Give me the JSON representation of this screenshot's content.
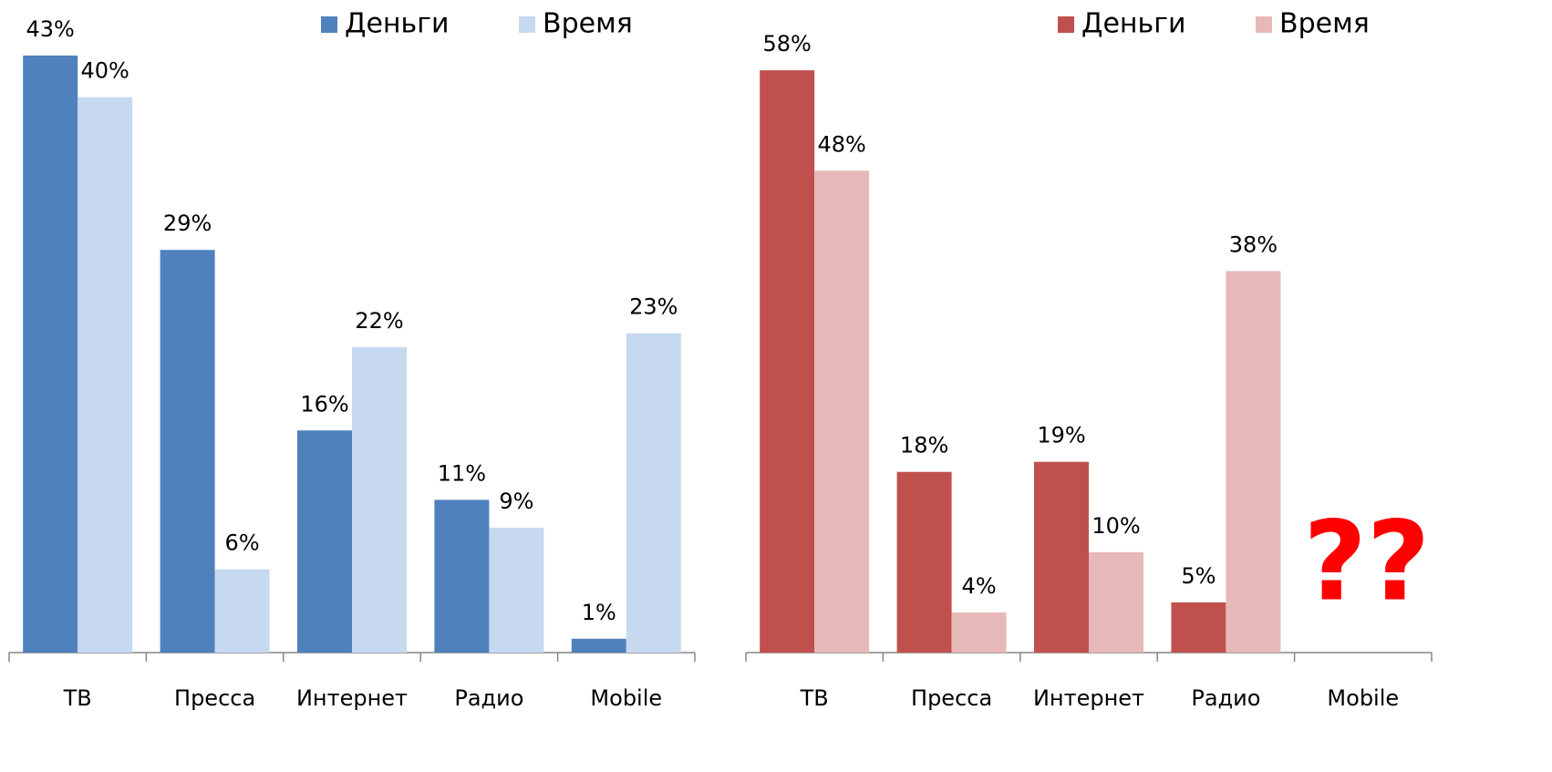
{
  "chart_data": [
    {
      "type": "bar",
      "categories": [
        "ТВ",
        "Пресса",
        "Интернет",
        "Радио",
        "Mobile"
      ],
      "series": [
        {
          "name": "Деньги",
          "color": "#4f81bd",
          "values": [
            43,
            29,
            16,
            11,
            1
          ],
          "value_labels": [
            "43%",
            "29%",
            "16%",
            "11%",
            "1%"
          ]
        },
        {
          "name": "Время",
          "color": "#c6d9f1",
          "values": [
            40,
            6,
            22,
            9,
            23
          ],
          "value_labels": [
            "40%",
            "6%",
            "22%",
            "9%",
            "23%"
          ]
        }
      ],
      "ylim": [
        0,
        47
      ]
    },
    {
      "type": "bar",
      "categories": [
        "ТВ",
        "Пресса",
        "Интернет",
        "Радио",
        "Mobile"
      ],
      "series": [
        {
          "name": "Деньги",
          "color": "#c0504d",
          "values": [
            58,
            18,
            19,
            5,
            null
          ],
          "value_labels": [
            "58%",
            "18%",
            "19%",
            "5%",
            null
          ]
        },
        {
          "name": "Время",
          "color": "#e6b9b8",
          "values": [
            48,
            4,
            10,
            38,
            null
          ],
          "value_labels": [
            "48%",
            "4%",
            "10%",
            "38%",
            null
          ]
        }
      ],
      "ylim": [
        0,
        65
      ],
      "annotation": "??"
    }
  ]
}
